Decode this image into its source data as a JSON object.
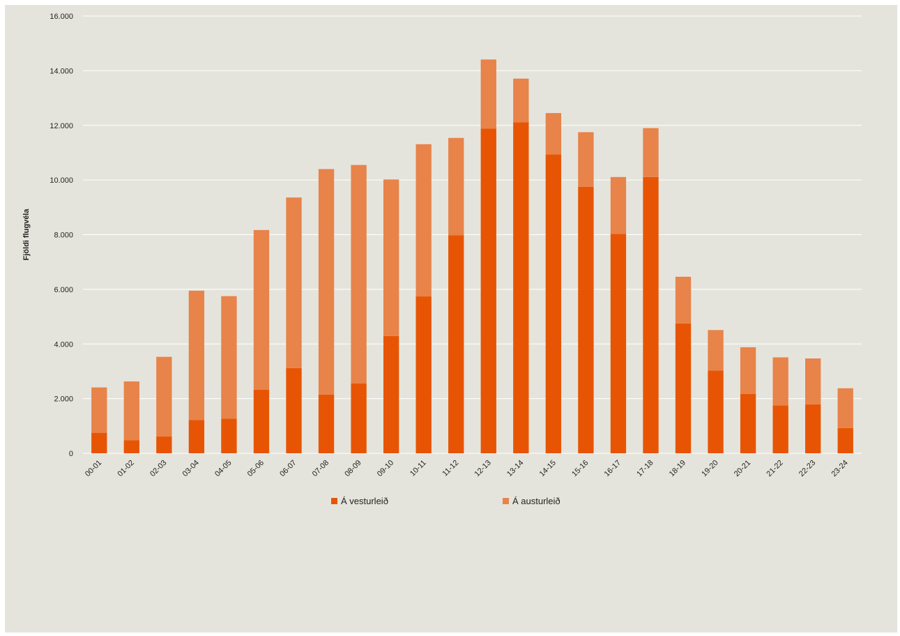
{
  "chart_data": {
    "type": "bar",
    "stacked": true,
    "title": "",
    "xlabel": "",
    "ylabel": "Fjöldi flugvéla",
    "ylim": [
      0,
      16000
    ],
    "yticks": [
      "0",
      "2.000",
      "4.000",
      "6.000",
      "8.000",
      "10.000",
      "12.000",
      "14.000",
      "16.000"
    ],
    "grid": true,
    "legend": "bottom-center",
    "categories": [
      "00-01",
      "01-02",
      "02-03",
      "03-04",
      "04-05",
      "05-06",
      "06-07",
      "07-08",
      "08-09",
      "09-10",
      "10-11",
      "11-12",
      "12-13",
      "13-14",
      "14-15",
      "15-16",
      "16-17",
      "17-18",
      "18-19",
      "19-20",
      "20-21",
      "21-22",
      "22-23",
      "23-24"
    ],
    "series": [
      {
        "name": "Á vesturleið",
        "color": "#e75504",
        "values": [
          750,
          480,
          620,
          1220,
          1270,
          2330,
          3120,
          2150,
          2560,
          4290,
          5740,
          7980,
          11880,
          12110,
          10940,
          9750,
          8030,
          10110,
          4750,
          3030,
          2170,
          1750,
          1790,
          920
        ]
      },
      {
        "name": "Á austurleið",
        "color": "#e8834a",
        "values": [
          1660,
          2150,
          2910,
          4730,
          4480,
          5840,
          6240,
          8250,
          7990,
          5730,
          5570,
          3560,
          2530,
          1600,
          1510,
          2000,
          2080,
          1790,
          1710,
          1480,
          1710,
          1760,
          1680,
          1460
        ]
      }
    ]
  }
}
